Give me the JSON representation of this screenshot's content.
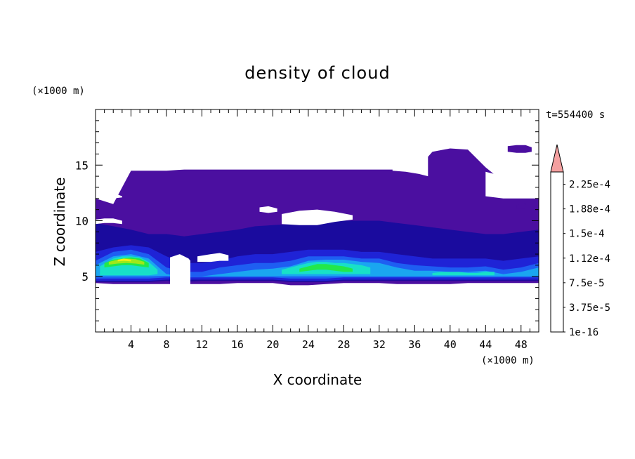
{
  "chart_data": {
    "type": "heatmap",
    "title": "density of cloud",
    "xlabel": "X coordinate",
    "ylabel": "Z coordinate",
    "x_unit": "(×1000 m)",
    "y_unit": "(×1000 m)",
    "time_label": "t=554400 s",
    "xlim": [
      0,
      50
    ],
    "ylim": [
      0,
      20
    ],
    "x_ticks": [
      4,
      8,
      12,
      16,
      20,
      24,
      28,
      32,
      36,
      40,
      44,
      48
    ],
    "y_ticks": [
      5,
      10,
      15
    ],
    "colorbar": {
      "labels": [
        "1e-16",
        "3.75e-5",
        "7.5e-5",
        "1.12e-4",
        "1.5e-4",
        "1.88e-4",
        "2.25e-4"
      ],
      "colors": [
        "#4b0fa0",
        "#1a0b9e",
        "#1f23d6",
        "#1e5ef2",
        "#1aa6f0",
        "#18e0c8",
        "#22e84a",
        "#9ee81a",
        "#f2ee10",
        "#f5be0c",
        "#f5900a",
        "#f05a08",
        "#e81e06"
      ],
      "overflow_color": "#f4a0a0"
    },
    "layers": [
      {
        "level": 0,
        "x": [
          0,
          2,
          4,
          6,
          8,
          10,
          12,
          14,
          16,
          18,
          20,
          22,
          24,
          26,
          28,
          30,
          32,
          34,
          36,
          38,
          40,
          42,
          44,
          46,
          48,
          50
        ],
        "top": [
          12,
          11.5,
          14.5,
          14.5,
          14.5,
          14.6,
          14.6,
          14.6,
          14.6,
          14.6,
          14.6,
          14.6,
          14.6,
          14.6,
          14.6,
          14.6,
          14.6,
          14.6,
          14.4,
          16.2,
          16.5,
          16.4,
          14.8,
          13.5,
          12.5,
          12
        ],
        "bottom": [
          4.4,
          4.3,
          4.3,
          4.3,
          4.3,
          4.3,
          4.3,
          4.3,
          4.4,
          4.4,
          4.4,
          4.2,
          4.2,
          4.3,
          4.4,
          4.4,
          4.4,
          4.3,
          4.3,
          4.3,
          4.3,
          4.4,
          4.4,
          4.4,
          4.4,
          4.4
        ]
      },
      {
        "level": 1,
        "x": [
          0,
          2,
          4,
          6,
          8,
          10,
          12,
          14,
          16,
          18,
          20,
          22,
          24,
          26,
          28,
          30,
          32,
          34,
          36,
          38,
          40,
          42,
          44,
          46,
          48,
          50
        ],
        "top": [
          9.8,
          9.5,
          9.2,
          8.8,
          8.8,
          8.6,
          8.8,
          9,
          9.2,
          9.5,
          9.6,
          9.7,
          9.8,
          10,
          10,
          10,
          10,
          9.8,
          9.6,
          9.4,
          9.2,
          9,
          8.8,
          8.8,
          9,
          9.2
        ],
        "bottom": [
          4.5,
          4.5,
          4.5,
          4.5,
          4.6,
          4.5,
          4.6,
          4.6,
          4.6,
          4.6,
          4.6,
          4.5,
          4.5,
          4.5,
          4.6,
          4.6,
          4.6,
          4.6,
          4.6,
          4.6,
          4.6,
          4.6,
          4.6,
          4.6,
          4.6,
          4.6
        ]
      },
      {
        "level": 2,
        "x": [
          0,
          2,
          4,
          6,
          8,
          10,
          12,
          14,
          16,
          18,
          20,
          22,
          24,
          26,
          28,
          30,
          32,
          34,
          36,
          38,
          40,
          42,
          44,
          46,
          48,
          50
        ],
        "top": [
          7.2,
          7.6,
          7.8,
          7.6,
          6.8,
          6.2,
          6.2,
          6.4,
          6.8,
          7,
          7,
          7.2,
          7.4,
          7.4,
          7.4,
          7.2,
          7.2,
          7,
          6.8,
          6.6,
          6.6,
          6.6,
          6.6,
          6.4,
          6.6,
          6.8
        ],
        "bottom": [
          4.6,
          4.6,
          4.6,
          4.6,
          4.7,
          4.7,
          4.7,
          4.7,
          4.7,
          4.7,
          4.7,
          4.6,
          4.6,
          4.6,
          4.7,
          4.7,
          4.7,
          4.7,
          4.7,
          4.7,
          4.7,
          4.7,
          4.7,
          4.7,
          4.7,
          4.7
        ]
      },
      {
        "level": 3,
        "x": [
          0,
          2,
          4,
          6,
          8,
          10,
          12,
          14,
          16,
          18,
          20,
          22,
          24,
          26,
          28,
          30,
          32,
          34,
          36,
          38,
          40,
          42,
          44,
          46,
          48,
          50
        ],
        "top": [
          6.4,
          7.2,
          7.4,
          7,
          5.8,
          5.4,
          5.4,
          5.8,
          6,
          6.2,
          6.2,
          6.4,
          6.8,
          6.8,
          6.8,
          6.6,
          6.6,
          6.2,
          6,
          5.9,
          5.8,
          5.8,
          5.9,
          5.6,
          5.8,
          6.2
        ],
        "bottom": [
          4.8,
          4.8,
          4.8,
          4.8,
          4.9,
          4.9,
          4.9,
          4.9,
          4.9,
          4.9,
          4.9,
          4.8,
          4.8,
          4.8,
          4.9,
          4.9,
          4.9,
          4.9,
          4.9,
          4.9,
          4.9,
          4.9,
          4.9,
          4.9,
          4.9,
          4.9
        ]
      },
      {
        "level": 4,
        "x": [
          0,
          2,
          4,
          6,
          8,
          10,
          12,
          14,
          16,
          18,
          20,
          22,
          24,
          26,
          28,
          30,
          32,
          34,
          36,
          38,
          40,
          42,
          44,
          46,
          48,
          50
        ],
        "top": [
          6,
          6.8,
          7,
          6.6,
          5.2,
          5,
          5,
          5.2,
          5.4,
          5.6,
          5.7,
          5.9,
          6.4,
          6.5,
          6.5,
          6.3,
          6.2,
          5.8,
          5.5,
          5.5,
          5.4,
          5.4,
          5.5,
          5.2,
          5.4,
          5.8
        ],
        "bottom": [
          5,
          5,
          5,
          5,
          5.05,
          5,
          5,
          5,
          5,
          5,
          5,
          5,
          5,
          5,
          5,
          5,
          5,
          5,
          5,
          5,
          5,
          5,
          5,
          5,
          5,
          5
        ]
      },
      {
        "level": 5,
        "x": [
          0.5,
          2,
          3,
          4,
          5,
          6,
          7
        ],
        "top": [
          5.9,
          6.6,
          6.8,
          6.8,
          6.7,
          6.3,
          5.6
        ],
        "bottom": [
          5.1,
          5.1,
          5.1,
          5.1,
          5.1,
          5.1,
          5.2
        ]
      },
      {
        "level": 5,
        "x": [
          21,
          22,
          23,
          24,
          25,
          26,
          27,
          28,
          29,
          30,
          31
        ],
        "top": [
          5.6,
          5.8,
          6,
          6.2,
          6.3,
          6.3,
          6.2,
          6.2,
          6.1,
          6,
          5.8
        ],
        "bottom": [
          5.2,
          5.2,
          5.2,
          5.2,
          5.2,
          5.2,
          5.2,
          5.2,
          5.2,
          5.2,
          5.2
        ]
      },
      {
        "level": 5,
        "x": [
          38,
          39,
          40,
          41,
          42,
          43,
          44,
          45
        ],
        "top": [
          5.3,
          5.4,
          5.4,
          5.4,
          5.3,
          5.3,
          5.4,
          5.4
        ],
        "bottom": [
          5.1,
          5.1,
          5.1,
          5.1,
          5.1,
          5.1,
          5.1,
          5.1
        ]
      },
      {
        "level": 6,
        "x": [
          1,
          2,
          3,
          4,
          5,
          6
        ],
        "top": [
          6.2,
          6.5,
          6.6,
          6.7,
          6.6,
          6.2
        ],
        "bottom": [
          5.8,
          5.9,
          6,
          6,
          5.9,
          5.8
        ]
      },
      {
        "level": 6,
        "x": [
          23,
          24,
          25,
          26,
          27,
          28,
          29
        ],
        "top": [
          5.7,
          5.9,
          6.1,
          6.1,
          6,
          5.9,
          5.7
        ],
        "bottom": [
          5.4,
          5.5,
          5.6,
          5.6,
          5.5,
          5.4,
          5.4
        ]
      },
      {
        "level": 7,
        "x": [
          1.5,
          2.5,
          3.5,
          4.5,
          5.5
        ],
        "top": [
          6.3,
          6.5,
          6.6,
          6.55,
          6.3
        ],
        "bottom": [
          6.05,
          6.15,
          6.2,
          6.15,
          6.05
        ]
      },
      {
        "level": 8,
        "x": [
          2.5,
          3.2,
          4
        ],
        "top": [
          6.5,
          6.6,
          6.5
        ],
        "bottom": [
          6.35,
          6.4,
          6.35
        ]
      }
    ],
    "gaps": [
      {
        "x": [
          8.4,
          9.5,
          10.5,
          10.7
        ],
        "top": [
          6.7,
          7,
          6.6,
          6.4
        ],
        "bottom": [
          4.2,
          4.2,
          4.2,
          4.2
        ]
      },
      {
        "x": [
          0,
          1,
          2,
          3
        ],
        "top": [
          10.1,
          10.2,
          10.2,
          10
        ],
        "bottom": [
          9.7,
          9.8,
          9.8,
          9.7
        ]
      },
      {
        "x": [
          11.5,
          13,
          14,
          15
        ],
        "top": [
          6.8,
          7,
          7.1,
          6.9
        ],
        "bottom": [
          6.3,
          6.3,
          6.4,
          6.4
        ]
      },
      {
        "x": [
          21,
          23,
          25,
          27,
          29
        ],
        "top": [
          10.6,
          10.9,
          11,
          10.8,
          10.5
        ],
        "bottom": [
          9.7,
          9.6,
          9.6,
          9.9,
          10.1
        ]
      },
      {
        "x": [
          18.5,
          19.5,
          20.5
        ],
        "top": [
          11.2,
          11.3,
          11.1
        ],
        "bottom": [
          10.8,
          10.7,
          10.8
        ]
      },
      {
        "x": [
          0,
          1,
          2,
          3
        ],
        "top": [
          14.6,
          13.5,
          12.5,
          12.2
        ],
        "bottom": [
          12.1,
          12,
          12,
          12.1
        ]
      },
      {
        "x": [
          44,
          46,
          48,
          50
        ],
        "top": [
          14.4,
          14,
          13.8,
          13.2
        ],
        "bottom": [
          12.2,
          12,
          12,
          12
        ]
      },
      {
        "x": [
          33.5,
          35,
          36.5,
          37.5
        ],
        "top": [
          16.8,
          16.8,
          16.5,
          16
        ],
        "bottom": [
          14.5,
          14.4,
          14.2,
          14
        ]
      }
    ],
    "patches": [
      {
        "level": 0,
        "x": [
          46.5,
          47.5,
          48.5,
          49.2
        ],
        "top": [
          16.7,
          16.8,
          16.8,
          16.6
        ],
        "bottom": [
          16.2,
          16.1,
          16.1,
          16.2
        ]
      },
      {
        "level": 0,
        "x": [
          47.5,
          48.5
        ],
        "top": [
          11.4,
          11.6
        ],
        "bottom": [
          11.1,
          11.1
        ]
      }
    ]
  }
}
